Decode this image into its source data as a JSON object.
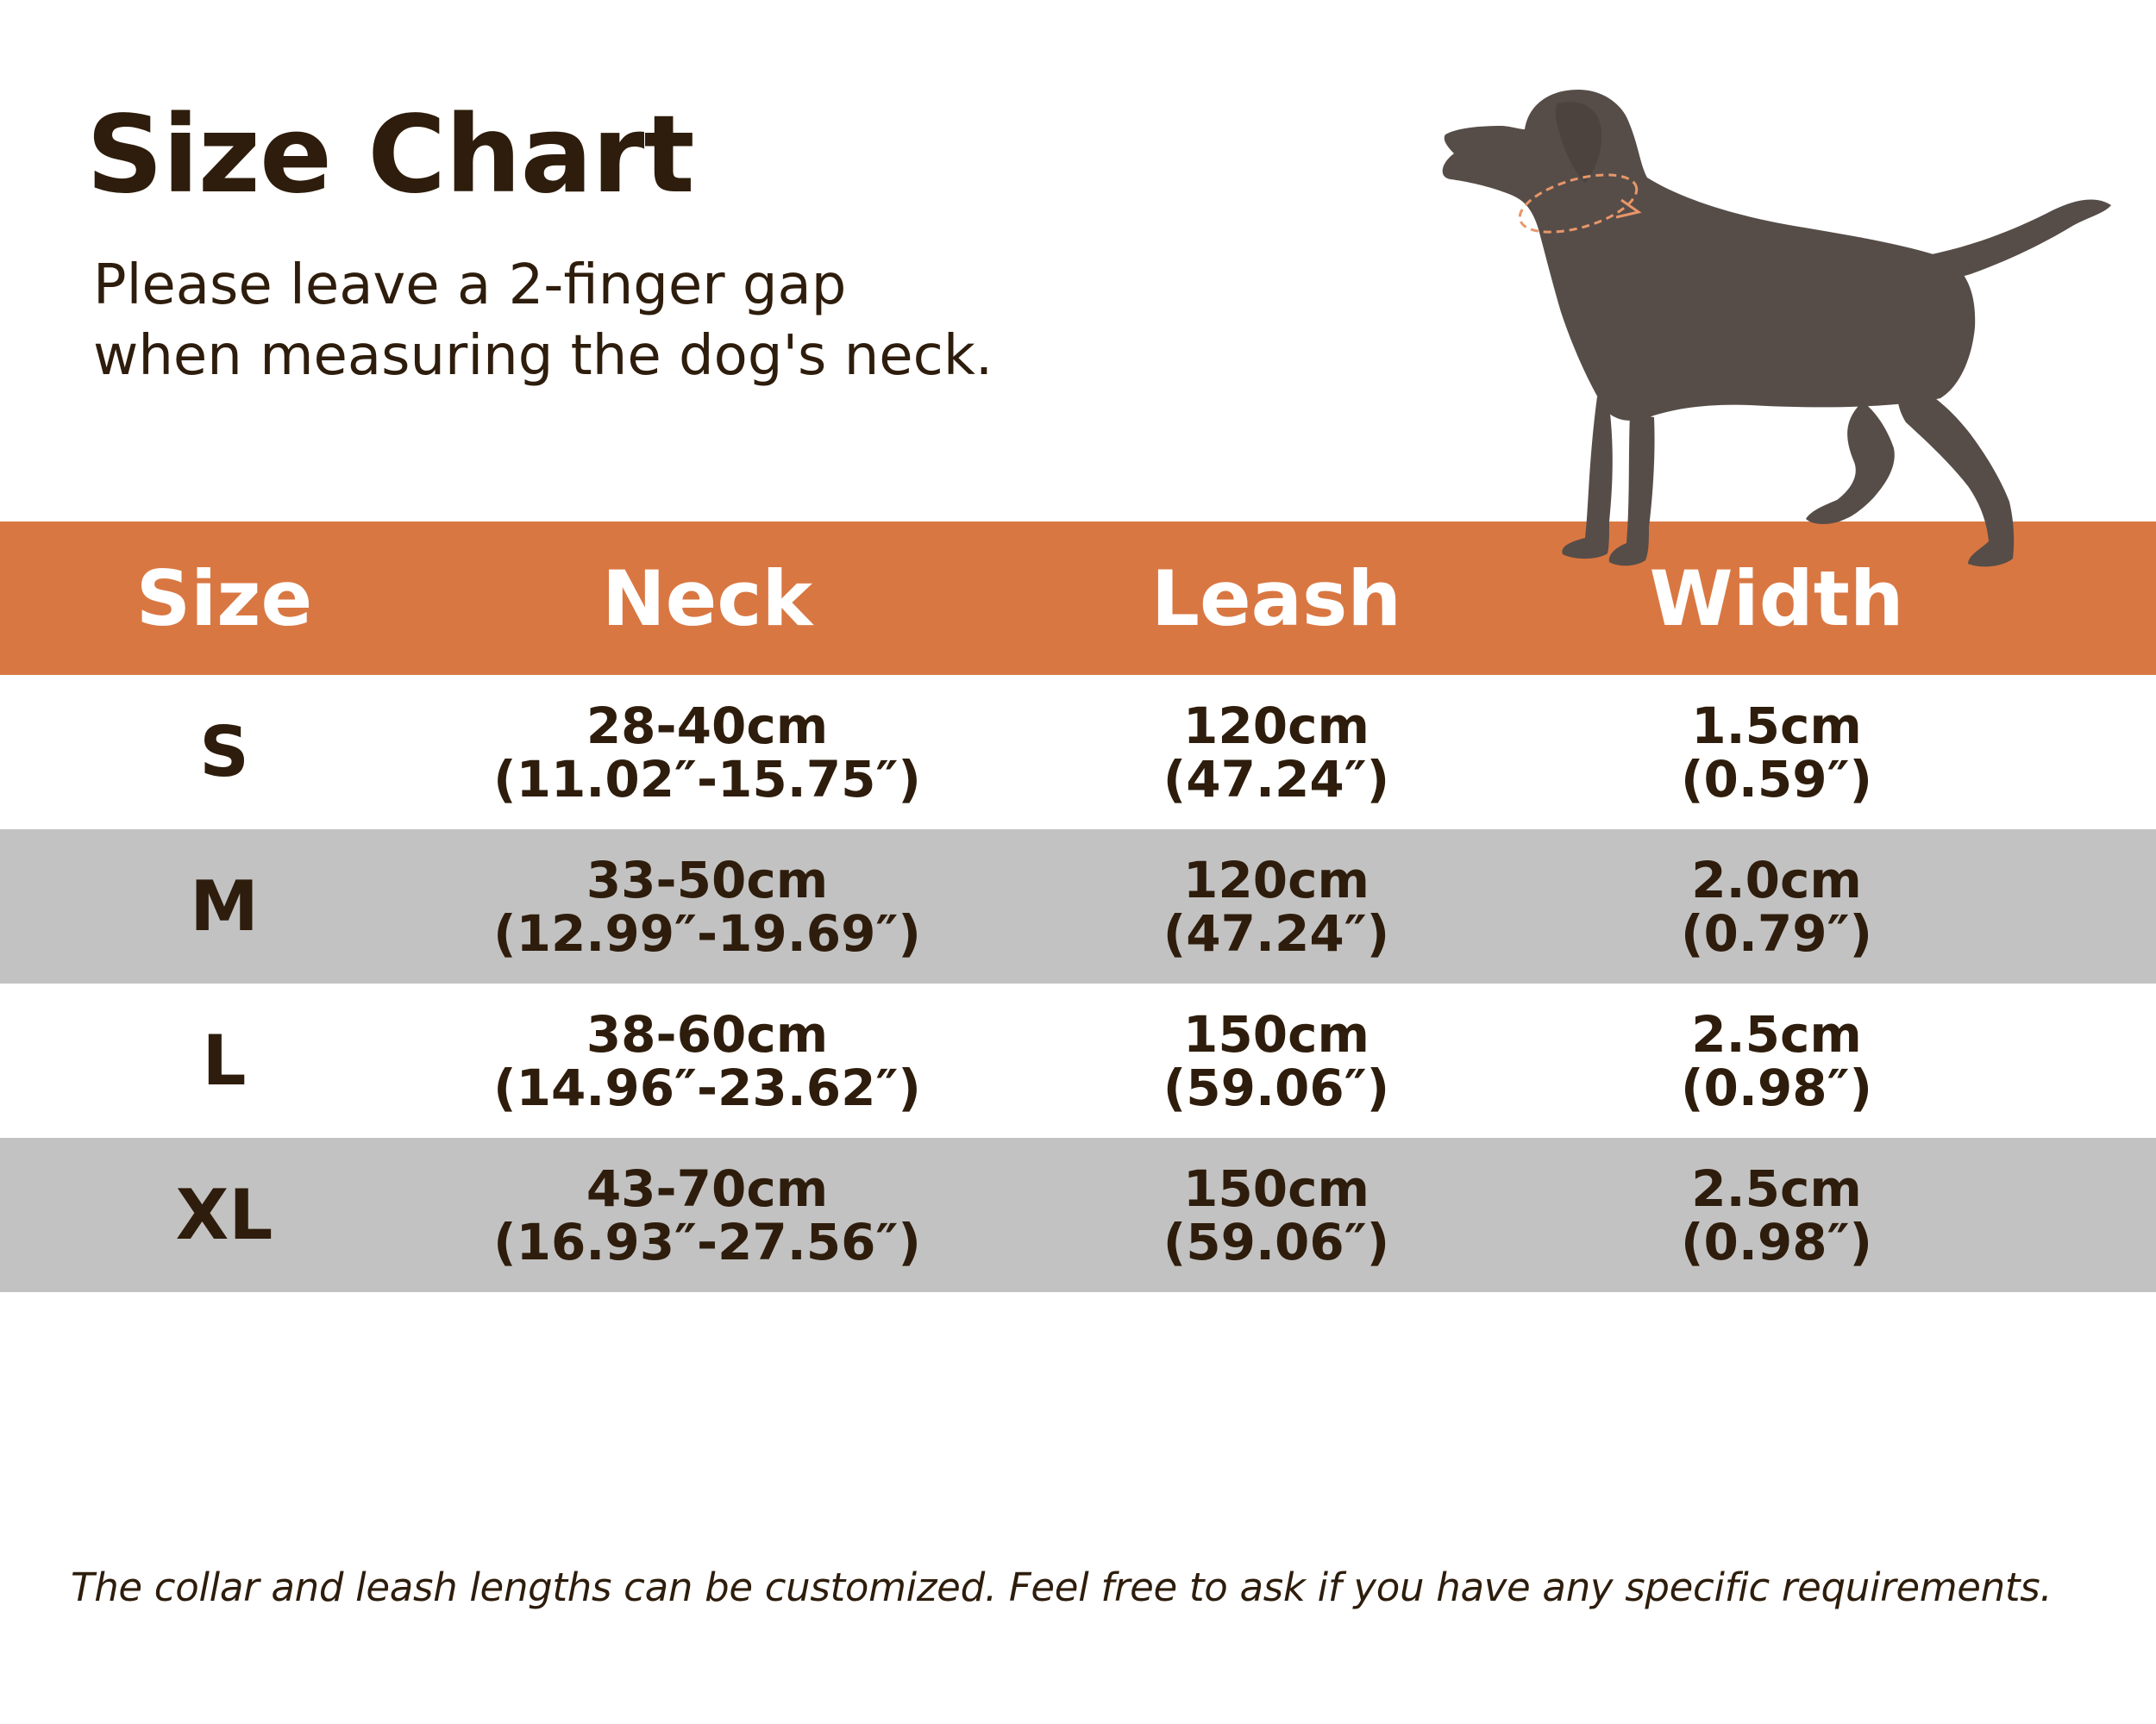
{
  "title": "Size Chart",
  "subtitle": {
    "line1": "Please leave a 2-finger gap",
    "line2": "when measuring the dog's neck."
  },
  "table": {
    "headers": [
      "Size",
      "Neck",
      "Leash",
      "Width"
    ],
    "rows": [
      {
        "size": "S",
        "neck_cm": "28-40cm",
        "neck_in": "(11.02″-15.75″)",
        "leash_cm": "120cm",
        "leash_in": "(47.24″)",
        "width_cm": "1.5cm",
        "width_in": "(0.59″)"
      },
      {
        "size": "M",
        "neck_cm": "33-50cm",
        "neck_in": "(12.99″-19.69″)",
        "leash_cm": "120cm",
        "leash_in": "(47.24″)",
        "width_cm": "2.0cm",
        "width_in": "(0.79″)"
      },
      {
        "size": "L",
        "neck_cm": "38-60cm",
        "neck_in": "(14.96″-23.62″)",
        "leash_cm": "150cm",
        "leash_in": "(59.06″)",
        "width_cm": "2.5cm",
        "width_in": "(0.98″)"
      },
      {
        "size": "XL",
        "neck_cm": "43-70cm",
        "neck_in": "(16.93″-27.56″)",
        "leash_cm": "150cm",
        "leash_in": "(59.06″)",
        "width_cm": "2.5cm",
        "width_in": "(0.98″)"
      }
    ]
  },
  "footnote": "The collar and leash lengths can be customized. Feel free to ask if you have any specific requirements.",
  "illustration": {
    "icon": "dog-silhouette-icon",
    "collar_icon": "neck-measure-loop-icon"
  },
  "colors": {
    "header_bg": "#d97742",
    "header_text": "#ffffff",
    "shade_row": "#c2c2c2",
    "text": "#2e1d0c",
    "dog": "#564d48",
    "collar_line": "#e8966a"
  }
}
